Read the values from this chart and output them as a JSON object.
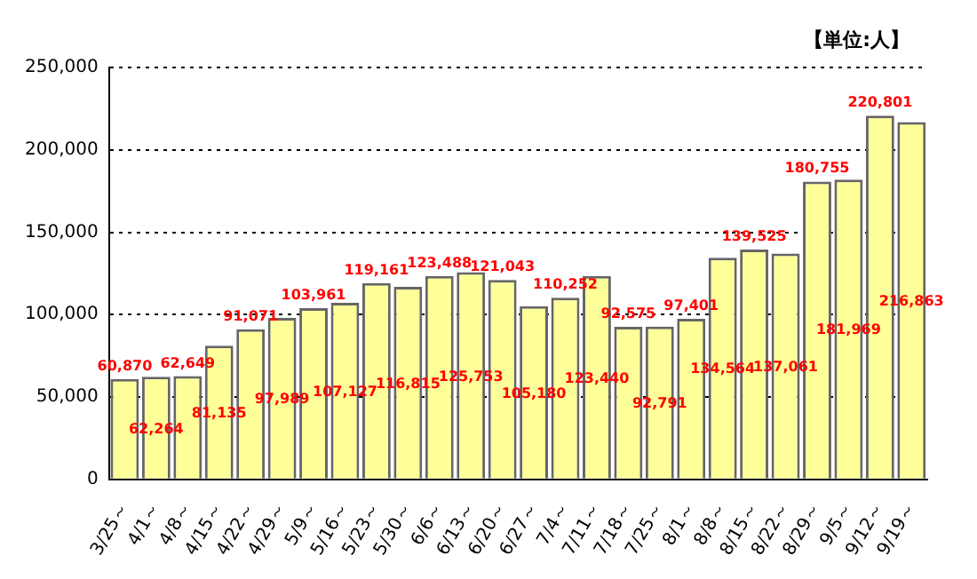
{
  "chart_data": {
    "type": "bar",
    "annotations": [
      "【単位:人】"
    ],
    "categories": [
      "3/25～",
      "4/1～",
      "4/8～",
      "4/15～",
      "4/22～",
      "4/29～",
      "5/9～",
      "5/16～",
      "5/23～",
      "5/30～",
      "6/6～",
      "6/13～",
      "6/20～",
      "6/27～",
      "7/4～",
      "7/11～",
      "7/18～",
      "7/25～",
      "8/1～",
      "8/8～",
      "8/15～",
      "8/22～",
      "8/29～",
      "9/5～",
      "9/12～",
      "9/19～"
    ],
    "values": [
      60870,
      62264,
      62649,
      81135,
      91071,
      97989,
      103961,
      107127,
      119161,
      116815,
      123488,
      125753,
      121043,
      105180,
      110252,
      123440,
      92575,
      92791,
      97401,
      134564,
      139525,
      137061,
      180755,
      181969,
      220801,
      216863
    ],
    "value_labels": [
      "60,870",
      "62,264",
      "62,649",
      "81,135",
      "91,071",
      "97,989",
      "103,961",
      "107,127",
      "119,161",
      "116,815",
      "123,488",
      "125,753",
      "121,043",
      "105,180",
      "110,252",
      "123,440",
      "92,575",
      "92,791",
      "97,401",
      "134,564",
      "139,525",
      "137,061",
      "180,755",
      "181,969",
      "220,801",
      "216,863"
    ],
    "color": "#ffff99",
    "ylim": [
      0,
      250000
    ],
    "yticks": [
      0,
      {
        "value": 50000,
        "label": "50,000"
      },
      {
        "value": 100000,
        "label": "100,000"
      },
      {
        "value": 150000,
        "label": "150,000"
      },
      {
        "value": 200000,
        "label": "200,000"
      },
      {
        "value": 250000,
        "label": "250,000"
      }
    ],
    "grid": "y"
  }
}
